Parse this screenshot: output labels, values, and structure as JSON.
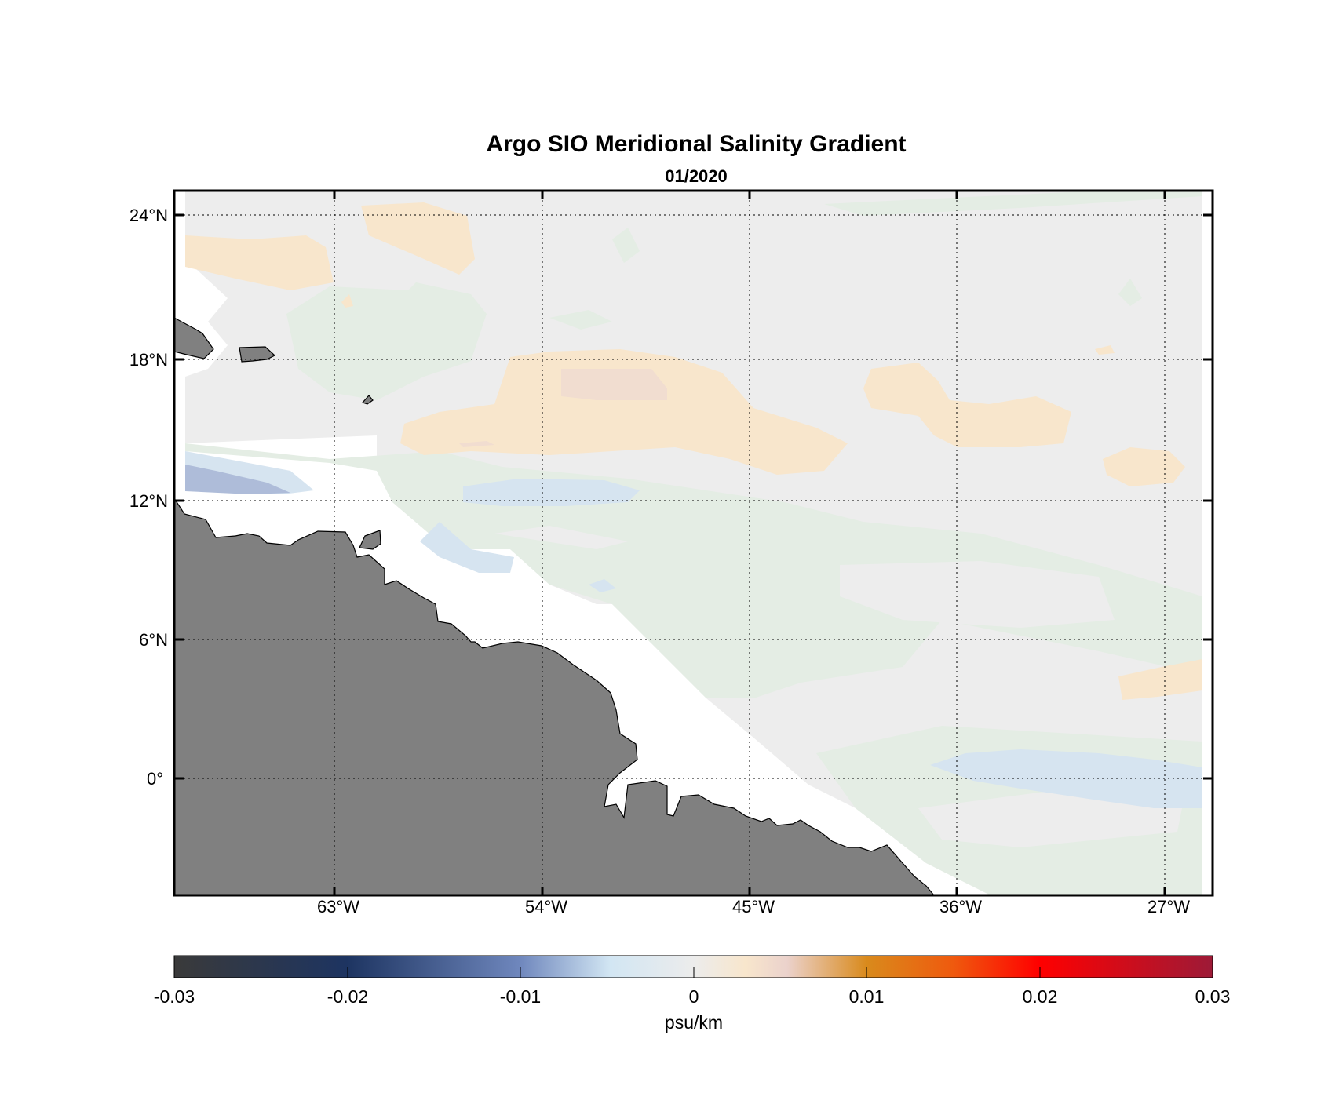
{
  "chart_data": {
    "type": "heatmap",
    "title": "Argo SIO Meridional Salinity Gradient",
    "subtitle": "01/2020",
    "lon_ticks": [
      "63°W",
      "54°W",
      "45°W",
      "36°W",
      "27°W"
    ],
    "lat_ticks": [
      "24°N",
      "18°N",
      "12°N",
      "6°N",
      "0°"
    ],
    "lon_tick_values": [
      -63,
      -54,
      -45,
      -36,
      -27
    ],
    "lat_tick_values": [
      24,
      18,
      12,
      6,
      0
    ],
    "xlim": [
      -70,
      -25
    ],
    "ylim": [
      -5,
      25
    ],
    "grid": true,
    "colorbar": {
      "label": "psu/km",
      "ticks": [
        "-0.03",
        "-0.02",
        "-0.01",
        "0",
        "0.01",
        "0.02",
        "0.03"
      ],
      "range": [
        -0.03,
        0.03
      ],
      "colors": [
        "#3a3a3a",
        "#1d3461",
        "#6f87bd",
        "#d2e6f3",
        "#ececec",
        "#f8e6cc",
        "#d98a1c",
        "#ff0000",
        "#9d1a37"
      ]
    },
    "colors": {
      "ocean_neutral": "#ededed",
      "weak_positive": "#f8e6cc",
      "moderate_positive": "#f1ddd0",
      "weak_negative_green": "#e4ede4",
      "weak_negative_blue": "#d6e4f0",
      "moderate_negative": "#aebcd9",
      "land": "#808080"
    }
  }
}
